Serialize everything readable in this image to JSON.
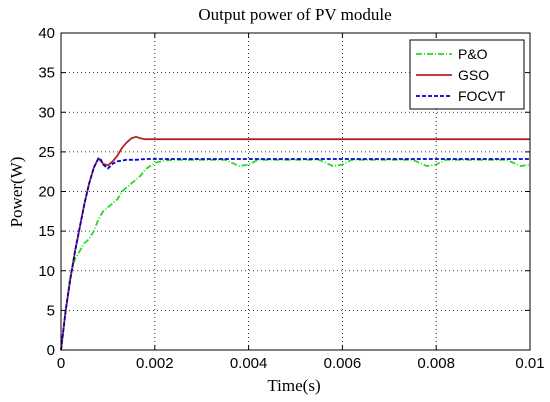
{
  "chart_data": {
    "type": "line",
    "title": "Output power of PV module",
    "xlabel": "Time(s)",
    "ylabel": "Power(W)",
    "xlim": [
      0,
      0.01
    ],
    "ylim": [
      0,
      40
    ],
    "xticks": [
      0,
      0.002,
      0.004,
      0.006,
      0.008,
      0.01
    ],
    "xtick_labels": [
      "0",
      "0.002",
      "0.004",
      "0.006",
      "0.008",
      "0.01"
    ],
    "yticks": [
      0,
      5,
      10,
      15,
      20,
      25,
      30,
      35,
      40
    ],
    "ytick_labels": [
      "0",
      "5",
      "10",
      "15",
      "20",
      "25",
      "30",
      "35",
      "40"
    ],
    "grid": true,
    "legend_position": "top-right",
    "series": [
      {
        "name": "P&O",
        "color": "#22dd22",
        "dash": "dashdot",
        "x": [
          0,
          0.0001,
          0.0002,
          0.0003,
          0.0004,
          0.0005,
          0.0006,
          0.0007,
          0.0008,
          0.0009,
          0.001,
          0.0011,
          0.0012,
          0.0013,
          0.0014,
          0.0015,
          0.0016,
          0.0017,
          0.0018,
          0.0019,
          0.002,
          0.0022,
          0.0024,
          0.003,
          0.0035,
          0.0038,
          0.004,
          0.0042,
          0.0045,
          0.005,
          0.0055,
          0.0058,
          0.006,
          0.0062,
          0.0065,
          0.007,
          0.0075,
          0.0078,
          0.008,
          0.0082,
          0.0085,
          0.009,
          0.0095,
          0.0098,
          0.01
        ],
        "y": [
          0,
          5,
          9.5,
          11.5,
          12.5,
          13.5,
          14,
          15,
          16.5,
          17.5,
          18,
          18.5,
          19,
          20,
          20.5,
          21,
          21.5,
          22,
          22.8,
          23.2,
          23.6,
          23.9,
          24,
          24,
          24,
          23.2,
          23.4,
          24,
          24,
          24,
          24,
          23.2,
          23.4,
          24,
          24,
          24,
          24,
          23.2,
          23.4,
          24,
          24,
          24,
          24,
          23.2,
          23.4
        ]
      },
      {
        "name": "GSO",
        "color": "#b22222",
        "dash": "solid",
        "x": [
          0,
          0.0001,
          0.0002,
          0.0003,
          0.0004,
          0.0005,
          0.0006,
          0.0007,
          0.0008,
          0.0009,
          0.001,
          0.0011,
          0.0012,
          0.0013,
          0.0014,
          0.0015,
          0.0016,
          0.0017,
          0.0018,
          0.002,
          0.004,
          0.006,
          0.008,
          0.01
        ],
        "y": [
          0,
          5,
          9,
          12.5,
          15.5,
          18.5,
          21,
          23,
          24.2,
          23.5,
          23.3,
          23.8,
          24.5,
          25.5,
          26.2,
          26.7,
          26.9,
          26.7,
          26.6,
          26.6,
          26.6,
          26.6,
          26.6,
          26.6
        ]
      },
      {
        "name": "FOCVT",
        "color": "#0000cc",
        "dash": "dashed",
        "x": [
          0,
          0.0001,
          0.0002,
          0.0003,
          0.0004,
          0.0005,
          0.0006,
          0.0007,
          0.0008,
          0.00085,
          0.0009,
          0.001,
          0.0011,
          0.0012,
          0.0014,
          0.0016,
          0.0018,
          0.002,
          0.004,
          0.006,
          0.008,
          0.01
        ],
        "y": [
          0,
          5,
          9,
          12.5,
          15.5,
          18.5,
          21,
          23,
          24.2,
          24,
          23.4,
          22.9,
          23.5,
          23.8,
          24,
          24,
          24.1,
          24.1,
          24.1,
          24.1,
          24.1,
          24.1
        ]
      }
    ]
  }
}
